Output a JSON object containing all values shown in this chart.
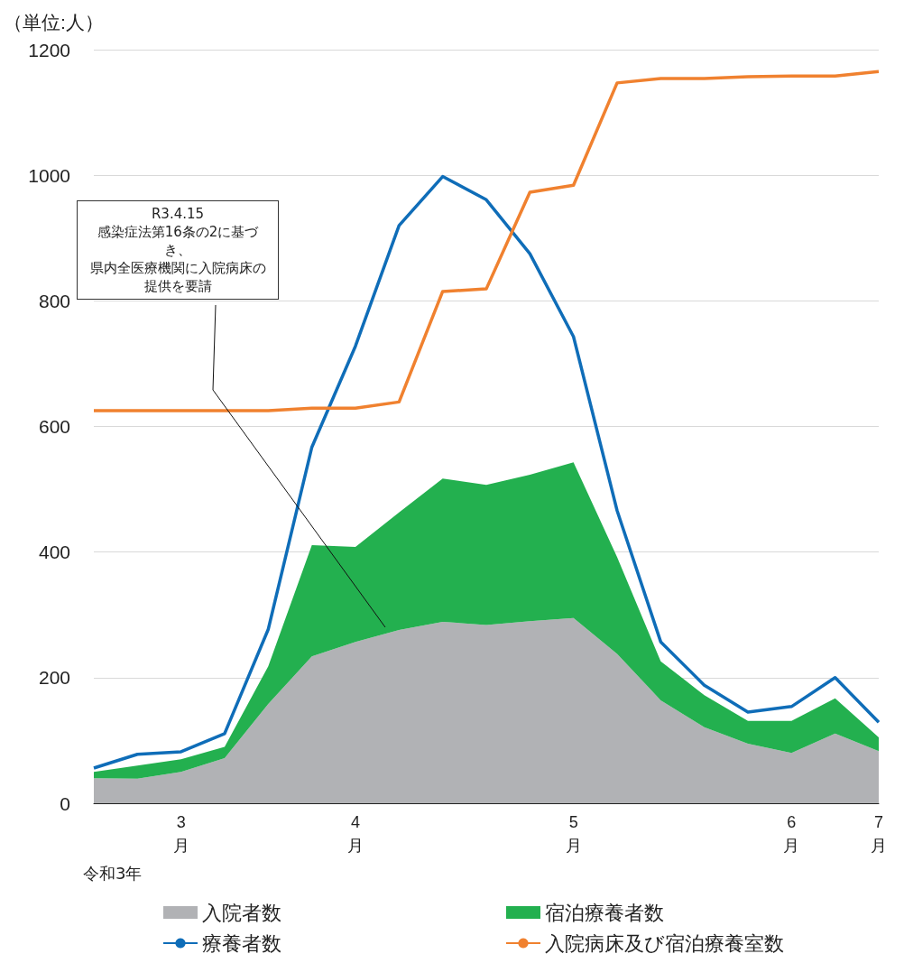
{
  "chart_data": {
    "type": "area",
    "ylabel": "（単位:人）",
    "categories": [
      null,
      null,
      "3月",
      null,
      null,
      null,
      "4月",
      null,
      null,
      null,
      null,
      "5月",
      null,
      null,
      null,
      null,
      "6月",
      null,
      "7月"
    ],
    "series": [
      {
        "name": "入院者数",
        "type": "area",
        "color": "#b1b2b5",
        "values": [
          40,
          39,
          50,
          72,
          158,
          234,
          257,
          276,
          289,
          284,
          290,
          295,
          238,
          164,
          121,
          95,
          80,
          111,
          83
        ]
      },
      {
        "name": "宿泊療養者数",
        "type": "area",
        "color": "#23b04f",
        "values": [
          10,
          21,
          20,
          18,
          60,
          177,
          151,
          187,
          228,
          223,
          233,
          248,
          154,
          62,
          51,
          36,
          51,
          56,
          22
        ]
      },
      {
        "name": "療養者数",
        "type": "line",
        "color": "#0f6db8",
        "values": [
          56,
          78,
          82,
          111,
          277,
          567,
          728,
          920,
          998,
          961,
          875,
          743,
          466,
          257,
          188,
          145,
          154,
          200,
          129
        ]
      },
      {
        "name": "入院病床及び宿泊療養室数",
        "type": "line",
        "color": "#f0812f",
        "values": [
          625,
          625,
          625,
          625,
          625,
          629,
          629,
          639,
          815,
          819,
          973,
          984,
          1147,
          1154,
          1154,
          1157,
          1158,
          1158,
          1165
        ]
      }
    ],
    "stacked": true,
    "ylim": [
      0,
      1200
    ],
    "yticks": [
      0,
      200,
      400,
      600,
      800,
      1000,
      1200
    ],
    "grid": "y",
    "legend": "bottom",
    "marker": "none",
    "line_style": "solid",
    "annotations": [
      "R3.4.15\n感染症法第16条の2に基づき、県内全医療機関に入院病床の提供を要請",
      "令和3年"
    ]
  }
}
